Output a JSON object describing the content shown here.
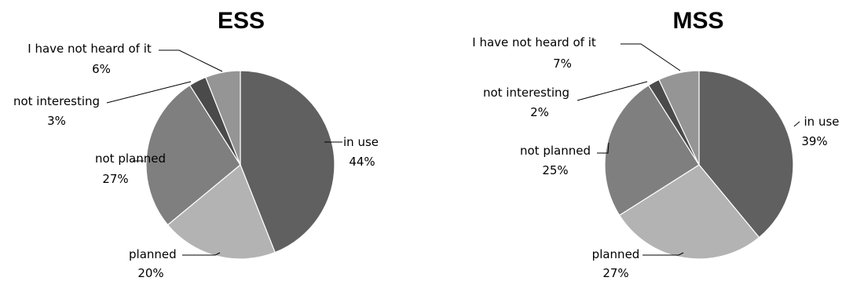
{
  "chart_data": [
    {
      "type": "pie",
      "title": "ESS",
      "start_angle_deg": 0,
      "direction": "clockwise",
      "slices": [
        {
          "name": "in use",
          "value": 44,
          "label": "44%",
          "color": "#606060"
        },
        {
          "name": "planned",
          "value": 20,
          "label": "20%",
          "color": "#b3b3b3"
        },
        {
          "name": "not planned",
          "value": 27,
          "label": "27%",
          "color": "#7f7f7f"
        },
        {
          "name": "not interesting",
          "value": 3,
          "label": "3%",
          "color": "#4a4a4a"
        },
        {
          "name": "I have not heard of it",
          "value": 6,
          "label": "6%",
          "color": "#959595"
        }
      ]
    },
    {
      "type": "pie",
      "title": "MSS",
      "start_angle_deg": 0,
      "direction": "clockwise",
      "slices": [
        {
          "name": "in use",
          "value": 39,
          "label": "39%",
          "color": "#606060"
        },
        {
          "name": "planned",
          "value": 27,
          "label": "27%",
          "color": "#b3b3b3"
        },
        {
          "name": "not planned",
          "value": 25,
          "label": "25%",
          "color": "#7f7f7f"
        },
        {
          "name": "not interesting",
          "value": 2,
          "label": "2%",
          "color": "#4a4a4a"
        },
        {
          "name": "I have not heard of it",
          "value": 7,
          "label": "7%",
          "color": "#959595"
        }
      ]
    }
  ]
}
